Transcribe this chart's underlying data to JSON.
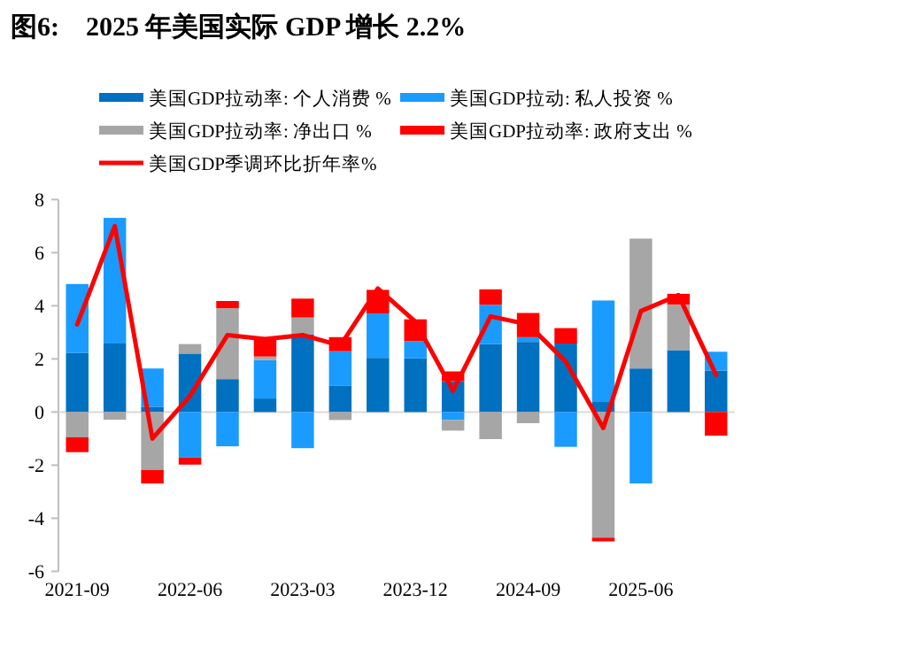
{
  "chart_data": {
    "type": "bar",
    "title": "图6:    2025 年美国实际 GDP 增长 2.2%",
    "stacked": true,
    "legend": "top",
    "ref_lines": [
      {
        "axis": "y",
        "value": 0,
        "color": "#d9d9d9"
      }
    ],
    "categories": [
      "2021-09",
      null,
      null,
      "2022-06",
      null,
      null,
      "2023-03",
      null,
      null,
      "2023-12",
      null,
      null,
      "2024-09",
      null,
      null,
      "2025-06",
      null,
      null
    ],
    "ylim": [
      -6,
      8
    ],
    "yticks": [
      -6,
      -4,
      -2,
      0,
      2,
      4,
      6,
      8
    ],
    "series": [
      {
        "name": "美国GDP拉动率: 个人消费 %",
        "color": "#0070c0",
        "values": [
          2.22,
          2.58,
          0.2,
          2.2,
          1.24,
          0.51,
          2.93,
          1.0,
          2.04,
          2.02,
          1.16,
          2.56,
          2.64,
          2.58,
          0.38,
          1.64,
          2.33,
          1.56
        ]
      },
      {
        "name": "美国GDP拉动: 私人投资 %",
        "color": "#1a9bff",
        "values": [
          2.6,
          4.73,
          1.44,
          -1.71,
          -1.29,
          1.45,
          -1.36,
          1.29,
          1.67,
          0.65,
          -0.3,
          1.48,
          0.18,
          -1.31,
          3.82,
          -2.69,
          0,
          0.71
        ]
      },
      {
        "name": "美国GDP拉动率: 净出口 %",
        "color": "#a6a6a6",
        "values": [
          -0.95,
          -0.29,
          -2.18,
          0.36,
          2.67,
          0.13,
          0.63,
          -0.3,
          null,
          null,
          -0.4,
          -1.02,
          -0.42,
          0,
          -4.73,
          4.89,
          1.72,
          null
        ]
      },
      {
        "name": "美国GDP拉动率: 政府支出 %",
        "color": "#ff0000",
        "values": [
          -0.56,
          0,
          -0.51,
          -0.27,
          0.27,
          0.73,
          0.71,
          0.53,
          0.89,
          0.82,
          0.37,
          0.58,
          0.91,
          0.58,
          -0.14,
          0,
          0.4,
          -0.89
        ]
      },
      {
        "name": "美国GDP季调环比折年率%",
        "type": "line",
        "color": "#ff0000",
        "values": [
          3.3,
          7.0,
          -1.0,
          0.6,
          2.9,
          2.75,
          2.9,
          2.5,
          4.65,
          3.4,
          0.8,
          3.6,
          3.3,
          1.9,
          -0.6,
          3.8,
          4.4,
          1.4
        ]
      }
    ]
  }
}
